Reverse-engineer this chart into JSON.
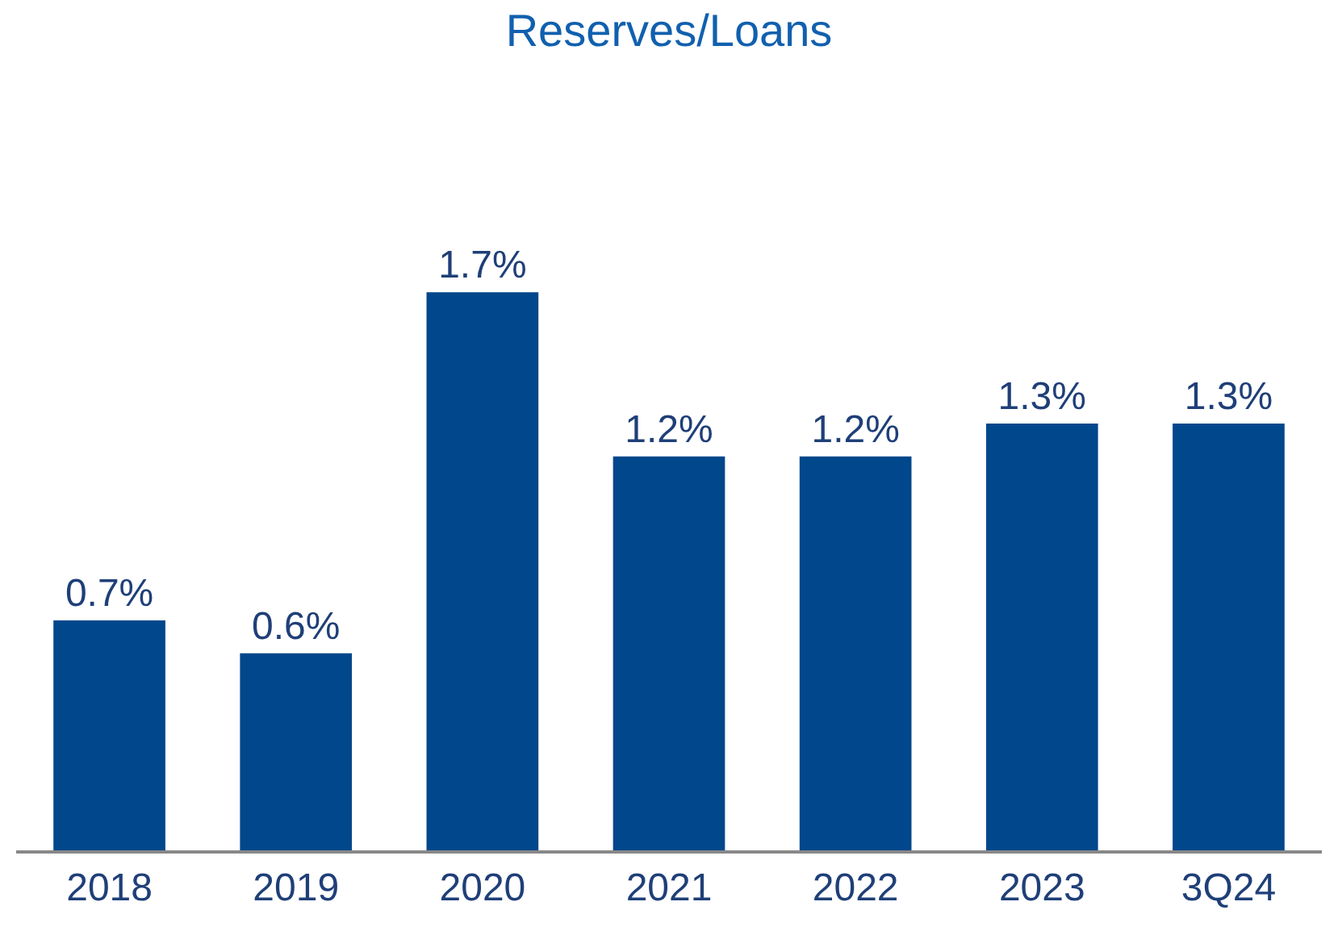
{
  "chart_data": {
    "type": "bar",
    "title": "Reserves/Loans",
    "categories": [
      "2018",
      "2019",
      "2020",
      "2021",
      "2022",
      "2023",
      "3Q24"
    ],
    "values": [
      0.7,
      0.6,
      1.7,
      1.2,
      1.2,
      1.3,
      1.3
    ],
    "value_labels": [
      "0.7%",
      "0.6%",
      "1.7%",
      "1.2%",
      "1.2%",
      "1.3%",
      "1.3%"
    ],
    "color": "#00478b"
  }
}
